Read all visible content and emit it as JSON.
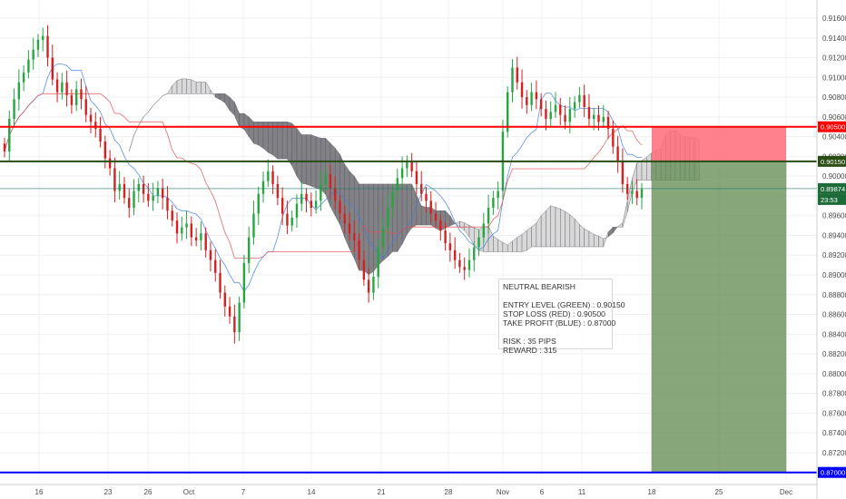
{
  "chart_data": {
    "type": "candlestick",
    "y_range": [
      0.869,
      0.917
    ],
    "y_ticks": [
      "0.91600",
      "0.91400",
      "0.91200",
      "0.91000",
      "0.90800",
      "0.90600",
      "0.90400",
      "0.90200",
      "0.90000",
      "0.89800",
      "0.89600",
      "0.89400",
      "0.89200",
      "0.89000",
      "0.88800",
      "0.88600",
      "0.88400",
      "0.88200",
      "0.88000",
      "0.87800",
      "0.87600",
      "0.87400",
      "0.87200"
    ],
    "x_ticks": [
      "16",
      "23",
      "26",
      "Oct",
      "7",
      "14",
      "21",
      "28",
      "Nov",
      "6",
      "11",
      "18",
      "25",
      "Dec"
    ],
    "current_price": "0.89874",
    "countdown": "23:53",
    "levels": {
      "stop_loss": {
        "value": 0.905,
        "label": "0.90500",
        "color": "#ff0000"
      },
      "entry": {
        "value": 0.9015,
        "label": "0.90150",
        "color": "#2a4d14"
      },
      "take_profit": {
        "value": 0.87,
        "label": "0.87000",
        "color": "#0000ff"
      },
      "price_line": {
        "value": 0.89874,
        "color": "#1e7a6b"
      }
    },
    "position_box": {
      "risk_color": "#ff6b7a",
      "reward_color": "#5f8a50"
    },
    "closes": [
      0.9025,
      0.9058,
      0.9078,
      0.9095,
      0.9105,
      0.9118,
      0.9128,
      0.9138,
      0.9142,
      0.912,
      0.9098,
      0.9085,
      0.9095,
      0.9082,
      0.9072,
      0.9088,
      0.9078,
      0.9062,
      0.9055,
      0.9048,
      0.9035,
      0.9018,
      0.9008,
      0.8985,
      0.8992,
      0.8978,
      0.8968,
      0.8985,
      0.8992,
      0.8982,
      0.8975,
      0.898,
      0.8988,
      0.8978,
      0.8965,
      0.8955,
      0.8942,
      0.8948,
      0.8952,
      0.8938,
      0.8935,
      0.8942,
      0.8925,
      0.8915,
      0.8902,
      0.8882,
      0.8868,
      0.8858,
      0.8842,
      0.8872,
      0.8912,
      0.8938,
      0.8962,
      0.8982,
      0.8995,
      0.9005,
      0.8992,
      0.8978,
      0.8962,
      0.895,
      0.8958,
      0.8972,
      0.8982,
      0.8975,
      0.8968,
      0.8975,
      0.8992,
      0.9002,
      0.8988,
      0.8975,
      0.8962,
      0.8952,
      0.8942,
      0.8935,
      0.8915,
      0.8895,
      0.8882,
      0.8898,
      0.8928,
      0.8948,
      0.8968,
      0.8985,
      0.8998,
      0.9008,
      0.9015,
      0.9005,
      0.8992,
      0.8982,
      0.8975,
      0.8962,
      0.8955,
      0.8945,
      0.8932,
      0.8925,
      0.8915,
      0.8908,
      0.8905,
      0.8915,
      0.8928,
      0.8938,
      0.8952,
      0.8968,
      0.8978,
      0.8985,
      0.9045,
      0.9085,
      0.911,
      0.9095,
      0.908,
      0.9072,
      0.9085,
      0.9078,
      0.9068,
      0.9058,
      0.9065,
      0.9072,
      0.9062,
      0.9055,
      0.9068,
      0.9075,
      0.9082,
      0.907,
      0.9058,
      0.9062,
      0.9055,
      0.906,
      0.9048,
      0.903,
      0.9015,
      0.8992,
      0.8982,
      0.8985,
      0.8978,
      0.8987
    ]
  },
  "annotation": {
    "title": "NEUTRAL BEARISH",
    "entry": "ENTRY LEVEL (GREEN) : 0.90150",
    "stop": "STOP LOSS (RED) : 0.90500",
    "target": "TAKE PROFIT (BLUE) : 0.87000",
    "risk": "RISK : 35 PIPS",
    "reward": "REWARD : 315"
  }
}
